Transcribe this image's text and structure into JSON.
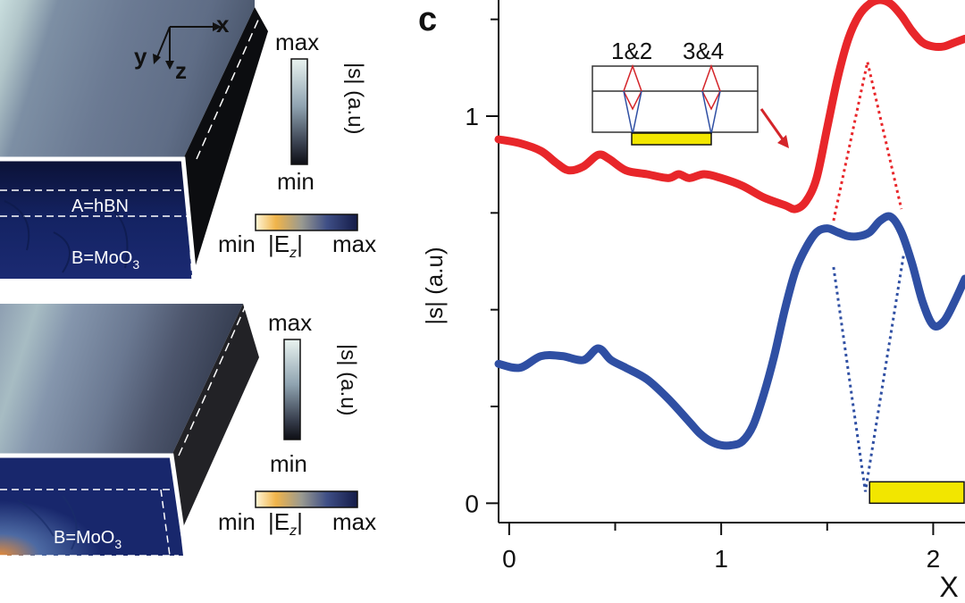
{
  "panel_letter": "c",
  "axes_3d": {
    "x": "x",
    "y": "y",
    "z": "z"
  },
  "top_block": {
    "colorbar_max": "max",
    "colorbar_min": "min",
    "colorbar_label": "|s| (a.u)",
    "layer_a": "A=hBN",
    "layer_b_main": "B=MoO",
    "layer_b_sub": "3",
    "ez_min": "min",
    "ez_label": "|E",
    "ez_sub": "z",
    "ez_label_end": "|",
    "ez_max": "max"
  },
  "bottom_block": {
    "colorbar_max": "max",
    "colorbar_min": "min",
    "colorbar_label": "|s| (a.u)",
    "layer_b_main": "B=MoO",
    "layer_b_sub": "3",
    "ez_min": "min",
    "ez_label": "|E",
    "ez_sub": "z",
    "ez_label_end": "|",
    "ez_max": "max"
  },
  "inset": {
    "label_left": "1&2",
    "label_right": "3&4"
  },
  "colors": {
    "red": "#e8262a",
    "blue": "#2f4fa3",
    "yellow": "#f2e600"
  },
  "chart_data": {
    "type": "line",
    "xlabel": "X",
    "ylabel": "|s| (a.u)",
    "xlim": [
      -0.05,
      2.15
    ],
    "ylim": [
      -0.05,
      1.3
    ],
    "xticks": [
      0,
      1,
      2
    ],
    "xtick_labels": [
      "0",
      "1",
      "2"
    ],
    "yticks": [
      0,
      1
    ],
    "ytick_labels": [
      "0",
      "1"
    ],
    "series": [
      {
        "color": "#e8262a",
        "x": [
          -0.05,
          0.05,
          0.15,
          0.22,
          0.28,
          0.35,
          0.42,
          0.47,
          0.55,
          0.65,
          0.75,
          0.8,
          0.85,
          0.92,
          1.0,
          1.1,
          1.2,
          1.3,
          1.35,
          1.4,
          1.45,
          1.5,
          1.55,
          1.6,
          1.65,
          1.7,
          1.75,
          1.8,
          1.85,
          1.9,
          1.95,
          2.0,
          2.05,
          2.1,
          2.15
        ],
        "y": [
          0.94,
          0.93,
          0.91,
          0.88,
          0.86,
          0.87,
          0.9,
          0.89,
          0.86,
          0.85,
          0.84,
          0.85,
          0.84,
          0.85,
          0.84,
          0.82,
          0.79,
          0.77,
          0.76,
          0.78,
          0.84,
          0.97,
          1.1,
          1.2,
          1.26,
          1.29,
          1.3,
          1.29,
          1.26,
          1.22,
          1.19,
          1.18,
          1.18,
          1.19,
          1.2
        ]
      },
      {
        "color": "#2f4fa3",
        "x": [
          -0.05,
          0.05,
          0.15,
          0.25,
          0.35,
          0.42,
          0.48,
          0.55,
          0.65,
          0.75,
          0.85,
          0.9,
          0.95,
          1.0,
          1.05,
          1.1,
          1.15,
          1.2,
          1.25,
          1.3,
          1.35,
          1.4,
          1.45,
          1.5,
          1.55,
          1.6,
          1.65,
          1.7,
          1.75,
          1.8,
          1.85,
          1.9,
          1.95,
          2.0,
          2.05,
          2.1,
          2.15
        ],
        "y": [
          0.36,
          0.35,
          0.38,
          0.38,
          0.37,
          0.4,
          0.37,
          0.35,
          0.32,
          0.27,
          0.21,
          0.18,
          0.16,
          0.15,
          0.15,
          0.16,
          0.2,
          0.28,
          0.38,
          0.5,
          0.6,
          0.66,
          0.7,
          0.71,
          0.7,
          0.69,
          0.69,
          0.7,
          0.73,
          0.74,
          0.7,
          0.62,
          0.52,
          0.46,
          0.47,
          0.52,
          0.58
        ]
      }
    ],
    "highlight_bar": {
      "x_start": 1.7,
      "x_end": 2.15,
      "y": 0
    },
    "dotted_guides": [
      {
        "color": "#e8262a",
        "points": [
          [
            1.53,
            0.73
          ],
          [
            1.69,
            1.14
          ],
          [
            1.85,
            0.76
          ]
        ]
      },
      {
        "color": "#2f4fa3",
        "points": [
          [
            1.53,
            0.61
          ],
          [
            1.68,
            0.03
          ],
          [
            1.86,
            0.64
          ]
        ]
      }
    ]
  }
}
